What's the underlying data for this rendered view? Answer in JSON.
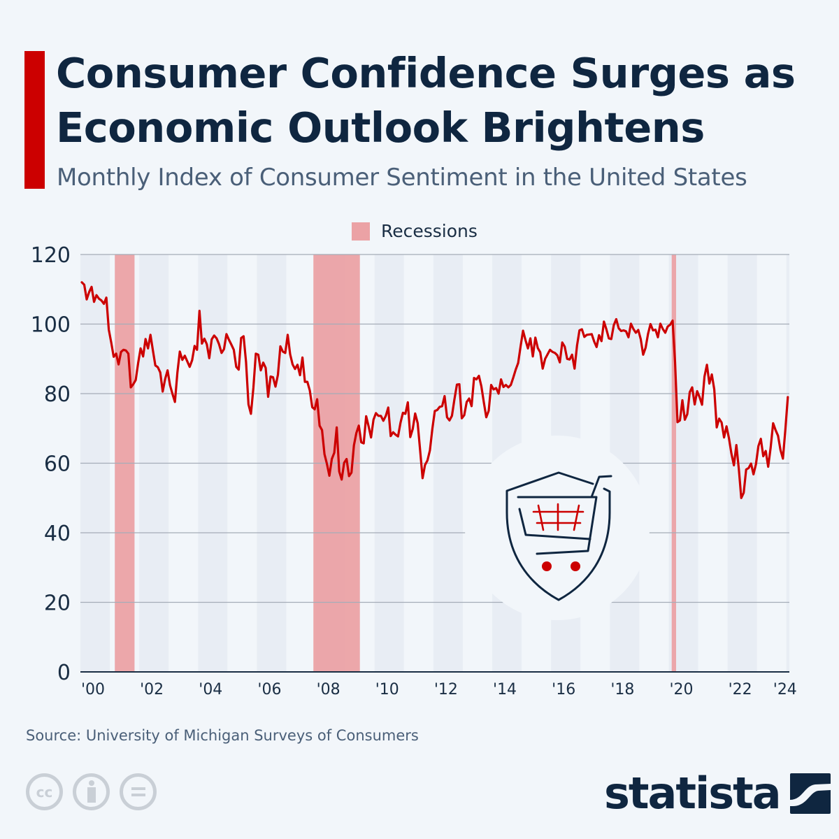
{
  "header": {
    "title": "Consumer Confidence Surges as Economic Outlook Brightens",
    "subtitle": "Monthly Index of Consumer Sentiment in the United States"
  },
  "legend": {
    "label": "Recessions",
    "color": "#eba2a5"
  },
  "colors": {
    "line": "#cc0000",
    "accent": "#cc0000",
    "recession": "#eba2a5",
    "title": "#0f2640"
  },
  "footer": {
    "source": "Source: University of Michigan Surveys of Consumers",
    "license_icons": [
      "cc-icon",
      "attribution-icon",
      "no-derivatives-icon"
    ],
    "brand": "statista"
  },
  "chart_data": {
    "type": "line",
    "title": "Consumer Confidence Surges as Economic Outlook Brightens",
    "subtitle": "Monthly Index of Consumer Sentiment in the United States",
    "xlabel": "",
    "ylabel": "",
    "ylim": [
      0,
      120
    ],
    "yticks": [
      0,
      20,
      40,
      60,
      80,
      100,
      120
    ],
    "xlim": [
      2000,
      2024.1
    ],
    "xtick_labels": [
      {
        "year": 2000,
        "label": "'00"
      },
      {
        "year": 2002,
        "label": "'02"
      },
      {
        "year": 2004,
        "label": "'04"
      },
      {
        "year": 2006,
        "label": "'06"
      },
      {
        "year": 2008,
        "label": "'08"
      },
      {
        "year": 2010,
        "label": "'10"
      },
      {
        "year": 2012,
        "label": "'12"
      },
      {
        "year": 2014,
        "label": "'14"
      },
      {
        "year": 2016,
        "label": "'16"
      },
      {
        "year": 2018,
        "label": "'18"
      },
      {
        "year": 2020,
        "label": "'20"
      },
      {
        "year": 2022,
        "label": "'22"
      },
      {
        "year": 2024,
        "label": "'24"
      }
    ],
    "grid": true,
    "legend_position": "top-center",
    "recessions": [
      {
        "start": 2001.17,
        "end": 2001.84
      },
      {
        "start": 2007.92,
        "end": 2009.5
      },
      {
        "start": 2020.1,
        "end": 2020.25
      }
    ],
    "series": [
      {
        "name": "Index of Consumer Sentiment",
        "start": "2000-01",
        "frequency": "monthly",
        "values": [
          112.0,
          111.3,
          107.1,
          109.2,
          110.7,
          106.4,
          108.3,
          107.3,
          106.8,
          105.8,
          107.6,
          98.4,
          94.7,
          90.6,
          91.5,
          88.4,
          92.0,
          92.6,
          92.4,
          91.5,
          81.8,
          82.7,
          83.9,
          88.8,
          93.0,
          90.7,
          95.7,
          93.0,
          96.9,
          92.4,
          88.1,
          87.6,
          86.1,
          80.6,
          84.2,
          86.7,
          82.4,
          79.9,
          77.6,
          86.0,
          92.1,
          89.7,
          90.9,
          89.3,
          87.7,
          89.6,
          93.7,
          92.6,
          103.8,
          94.4,
          95.8,
          94.2,
          90.2,
          95.6,
          96.7,
          95.9,
          94.2,
          91.7,
          92.8,
          97.1,
          95.5,
          94.1,
          92.6,
          87.7,
          86.9,
          96.0,
          96.5,
          89.1,
          76.9,
          74.2,
          81.6,
          91.5,
          91.2,
          86.7,
          88.9,
          87.4,
          79.1,
          84.9,
          84.7,
          82.0,
          85.4,
          93.6,
          92.1,
          91.7,
          96.9,
          91.3,
          88.4,
          87.1,
          88.3,
          85.3,
          90.4,
          83.4,
          83.4,
          80.9,
          76.1,
          75.5,
          78.4,
          70.8,
          69.5,
          62.6,
          59.8,
          56.4,
          61.2,
          63.0,
          70.3,
          57.6,
          55.3,
          60.1,
          61.2,
          56.3,
          57.3,
          65.1,
          68.7,
          70.8,
          66.0,
          65.7,
          73.5,
          70.6,
          67.4,
          72.5,
          74.4,
          73.6,
          73.6,
          72.2,
          73.6,
          76.0,
          67.8,
          68.9,
          68.2,
          67.7,
          71.6,
          74.5,
          74.2,
          77.5,
          67.5,
          69.8,
          74.3,
          71.5,
          63.7,
          55.7,
          59.5,
          60.8,
          63.7,
          69.9,
          75.0,
          75.3,
          76.2,
          76.4,
          79.3,
          73.2,
          72.3,
          73.6,
          78.3,
          82.6,
          82.7,
          72.9,
          73.8,
          77.6,
          78.6,
          76.4,
          84.5,
          84.1,
          85.1,
          82.1,
          77.5,
          73.2,
          75.1,
          82.5,
          81.2,
          81.6,
          80.0,
          84.1,
          81.9,
          82.5,
          81.8,
          82.5,
          84.6,
          86.9,
          88.8,
          93.6,
          98.1,
          95.4,
          93.0,
          95.9,
          90.7,
          96.1,
          93.1,
          91.9,
          87.2,
          90.0,
          91.3,
          92.6,
          92.0,
          91.7,
          91.0,
          89.0,
          94.7,
          93.5,
          90.0,
          89.8,
          91.2,
          87.2,
          93.8,
          98.2,
          98.5,
          96.3,
          96.9,
          97.0,
          97.1,
          95.0,
          93.4,
          96.8,
          95.1,
          100.7,
          98.5,
          95.9,
          95.7,
          99.7,
          101.4,
          98.8,
          98.0,
          98.2,
          97.9,
          96.2,
          100.1,
          98.6,
          97.5,
          98.3,
          95.7,
          91.2,
          93.2,
          97.2,
          100.0,
          98.2,
          98.4,
          96.2,
          100.1,
          98.6,
          97.5,
          99.3,
          99.8,
          101.0,
          89.1,
          71.8,
          72.3,
          78.1,
          72.5,
          74.1,
          80.4,
          81.8,
          76.9,
          80.7,
          79.0,
          76.8,
          84.9,
          88.3,
          82.9,
          85.5,
          81.2,
          70.3,
          72.8,
          71.7,
          67.4,
          70.6,
          67.2,
          62.8,
          59.4,
          65.2,
          58.4,
          50.0,
          51.5,
          58.2,
          58.6,
          59.9,
          56.8,
          59.7,
          64.9,
          67.0,
          62.0,
          63.5,
          59.0,
          64.4,
          71.5,
          69.5,
          67.9,
          63.8,
          61.3,
          69.7,
          79.0
        ]
      }
    ]
  }
}
